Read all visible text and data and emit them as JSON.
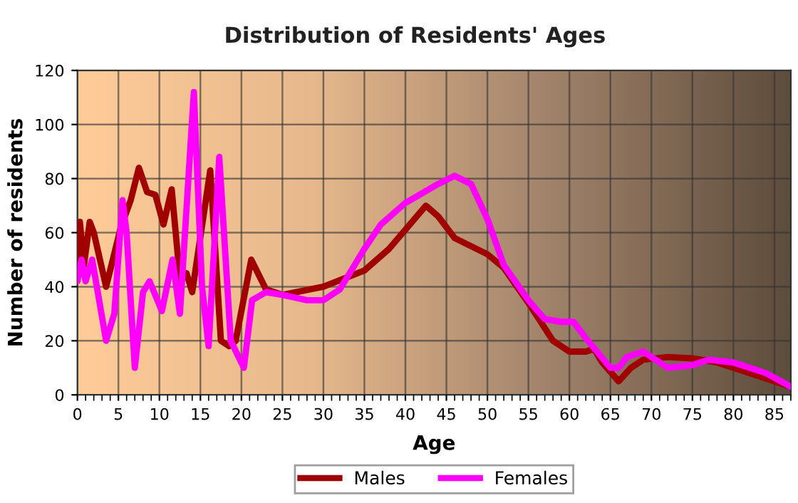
{
  "chart_data": {
    "type": "line",
    "title": "Distribution of Residents' Ages",
    "xlabel": "Age",
    "ylabel": "Number of residents",
    "xlim": [
      0,
      87
    ],
    "xticks": [
      0,
      5,
      10,
      15,
      20,
      25,
      30,
      35,
      40,
      45,
      50,
      55,
      60,
      65,
      70,
      75,
      80,
      85
    ],
    "ylim": [
      0,
      120
    ],
    "yticks": [
      0,
      20,
      40,
      60,
      80,
      100,
      120
    ],
    "grid": true,
    "legend": "bottom",
    "marker": "none",
    "line_style": "solid",
    "series": [
      {
        "name": "Males",
        "color": "#a00000",
        "x": [
          0,
          0.3,
          0.8,
          1.5,
          2,
          3.5,
          5.3,
          6.5,
          7.5,
          8.5,
          9.5,
          10.5,
          11.5,
          12.5,
          13.3,
          14,
          16.2,
          17.5,
          18.5,
          19.3,
          21.2,
          23,
          25,
          30,
          35,
          38,
          42.5,
          44,
          46,
          50,
          52,
          55,
          58,
          60,
          62,
          63,
          64,
          66,
          67.5,
          69,
          72,
          75,
          78,
          82,
          87
        ],
        "values": [
          43,
          64,
          48,
          64,
          60,
          40,
          62,
          72,
          84,
          75,
          74,
          63,
          76,
          43,
          45,
          38,
          83,
          20,
          18,
          20,
          50,
          39,
          37,
          40,
          46,
          54,
          70,
          66,
          58,
          52,
          47,
          34,
          20,
          16,
          16,
          17,
          12,
          5,
          10,
          13,
          14,
          13.5,
          12,
          8,
          3
        ]
      },
      {
        "name": "Females",
        "color": "#ff00ff",
        "x": [
          0,
          0.5,
          1,
          1.8,
          3.5,
          4.5,
          5.5,
          6,
          7,
          8,
          8.8,
          10.3,
          11.6,
          12.5,
          14.2,
          15.2,
          16,
          17.3,
          18.7,
          20.3,
          21.3,
          23,
          25,
          28,
          30,
          32,
          35,
          37,
          40,
          44,
          46,
          48,
          50,
          52,
          55,
          57,
          59,
          60.5,
          62,
          65,
          66,
          67,
          69,
          70,
          72,
          75,
          77,
          80,
          84,
          87
        ],
        "values": [
          42,
          50,
          42,
          50,
          20,
          30,
          72,
          60,
          10,
          38,
          42,
          31,
          50,
          30,
          112,
          40,
          18,
          88,
          20,
          10,
          35,
          38,
          37,
          35,
          35,
          39,
          54,
          63,
          71,
          78,
          81,
          78,
          65,
          48,
          35,
          28,
          27,
          27,
          21,
          10,
          10,
          14,
          16,
          14,
          10,
          11,
          13,
          12,
          8,
          3
        ]
      }
    ]
  }
}
